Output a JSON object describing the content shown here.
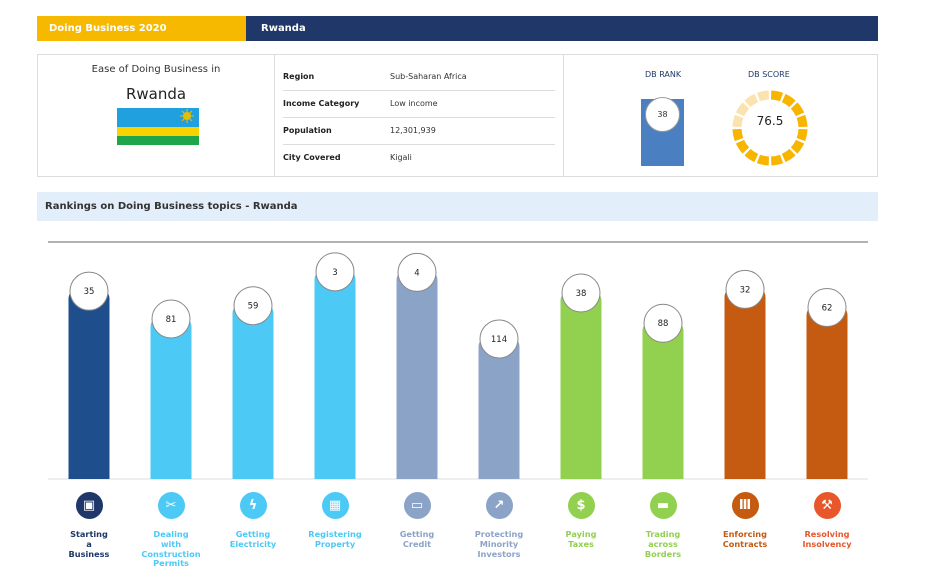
{
  "header": {
    "left": "Doing Business  2020",
    "right": "Rwanda"
  },
  "summary": {
    "ease_title": "Ease of Doing Business in",
    "country": "Rwanda",
    "rows": [
      {
        "label": "Region",
        "value": "Sub-Saharan Africa"
      },
      {
        "label": "Income Category",
        "value": "Low income"
      },
      {
        "label": "Population",
        "value": "12,301,939"
      },
      {
        "label": "City Covered",
        "value": "Kigali"
      }
    ],
    "db_rank_label": "DB RANK",
    "db_rank": "38",
    "db_score_label": "DB SCORE",
    "db_score": "76.5"
  },
  "rankings_title": "Rankings on Doing Business topics - Rwanda",
  "chart_data": {
    "type": "bar",
    "categories": [
      "Starting a Business",
      "Dealing with Construction Permits",
      "Getting Electricity",
      "Registering Property",
      "Getting Credit",
      "Protecting Minority Investors",
      "Paying Taxes",
      "Trading across Borders",
      "Enforcing Contracts",
      "Resolving Insolvency"
    ],
    "values": [
      35,
      81,
      59,
      3,
      4,
      114,
      38,
      88,
      32,
      62
    ],
    "colors": [
      "#1f4e8c",
      "#4dc9f6",
      "#4dc9f6",
      "#4dc9f6",
      "#8ca3c8",
      "#8ca3c8",
      "#92d050",
      "#92d050",
      "#c55a11",
      "#c55a11"
    ],
    "ylim": [
      0,
      190
    ]
  },
  "topics": [
    {
      "lines": [
        "Starting",
        "a",
        "Business"
      ],
      "color": "#1f3869",
      "icon": "building-icon"
    },
    {
      "lines": [
        "Dealing",
        "with",
        "Construction",
        "Permits"
      ],
      "color": "#4dc9f6",
      "icon": "tools-icon"
    },
    {
      "lines": [
        "Getting",
        "Electricity"
      ],
      "color": "#4dc9f6",
      "icon": "lightning-icon"
    },
    {
      "lines": [
        "Registering",
        "Property"
      ],
      "color": "#4dc9f6",
      "icon": "property-icon"
    },
    {
      "lines": [
        "Getting",
        "Credit"
      ],
      "color": "#8ca3c8",
      "icon": "credit-icon"
    },
    {
      "lines": [
        "Protecting",
        "Minority",
        "Investors"
      ],
      "color": "#8ca3c8",
      "icon": "trend-icon"
    },
    {
      "lines": [
        "Paying",
        "Taxes"
      ],
      "color": "#92d050",
      "icon": "money-icon"
    },
    {
      "lines": [
        "Trading",
        "across",
        "Borders"
      ],
      "color": "#92d050",
      "icon": "truck-icon"
    },
    {
      "lines": [
        "Enforcing",
        "Contracts"
      ],
      "color": "#c55a11",
      "icon": "courthouse-icon"
    },
    {
      "lines": [
        "Resolving",
        "Insolvency"
      ],
      "color": "#e8572a",
      "icon": "gavel-icon"
    }
  ]
}
